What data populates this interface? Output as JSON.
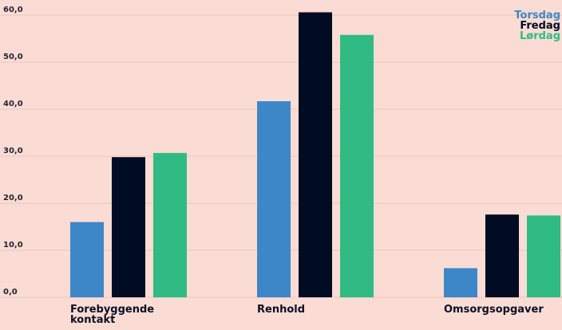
{
  "chart_data": {
    "type": "bar",
    "categories": [
      "Forebyggende kontakt",
      "Renhold",
      "Omsorgsopgaver"
    ],
    "category_lines": [
      [
        "Forebyggende",
        "kontakt"
      ],
      [
        "Renhold"
      ],
      [
        "Omsorgsopgaver"
      ]
    ],
    "series": [
      {
        "name": "Torsdag",
        "color": "#3d87c8",
        "values": [
          16.0,
          41.7,
          6.2
        ]
      },
      {
        "name": "Fredag",
        "color": "#000b24",
        "values": [
          29.8,
          60.6,
          17.6
        ]
      },
      {
        "name": "Lørdag",
        "color": "#2fbb83",
        "values": [
          30.7,
          55.8,
          17.4
        ]
      }
    ],
    "yticks": [
      "0,0",
      "10,0",
      "20,0",
      "30,0",
      "40,0",
      "50,0",
      "60,0"
    ],
    "ylim": [
      0,
      60
    ],
    "grid": true,
    "legend_position": "top-right",
    "title": "",
    "xlabel": "",
    "ylabel": ""
  }
}
